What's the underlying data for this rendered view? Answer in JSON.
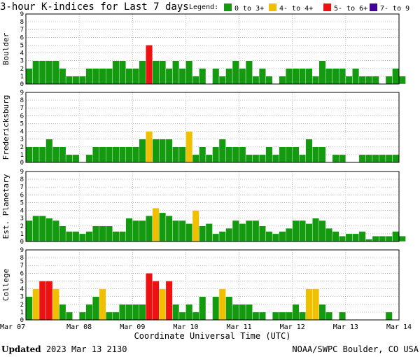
{
  "title": "3-hour K-indices for Last 7 days",
  "legend": {
    "label": "Legend:",
    "items": [
      {
        "label": "0 to 3+",
        "color": "#139a0e"
      },
      {
        "label": "4- to 4+",
        "color": "#f0c000"
      },
      {
        "label": "5- to 6+",
        "color": "#ee1111"
      },
      {
        "label": "7- to 9",
        "color": "#440099"
      }
    ]
  },
  "footer": {
    "updated_label": "Updated",
    "updated_value": "2023 Mar 13 2130",
    "source": "NOAA/SWPC Boulder, CO USA"
  },
  "chart_data": {
    "type": "bar",
    "xlabel": "Coordinate Universal Time (UTC)",
    "x_ticks": [
      "Mar 07",
      "Mar 08",
      "Mar 09",
      "Mar 10",
      "Mar 11",
      "Mar 12",
      "Mar 13",
      "Mar 14"
    ],
    "ylim": [
      0,
      9
    ],
    "y_ticks": [
      0,
      1,
      2,
      3,
      4,
      5,
      6,
      7,
      8,
      9
    ],
    "grid": true,
    "slots_per_day": 8,
    "days": 7,
    "panels": [
      {
        "name": "Boulder",
        "values": [
          2,
          3,
          3,
          3,
          3,
          2,
          1,
          1,
          1,
          2,
          2,
          2,
          2,
          3,
          3,
          2,
          2,
          3,
          5,
          3,
          3,
          2,
          3,
          2,
          3,
          1,
          2,
          0,
          2,
          1,
          2,
          3,
          2,
          3,
          1,
          2,
          1,
          0,
          1,
          2,
          2,
          2,
          2,
          1,
          3,
          2,
          2,
          2,
          1,
          2,
          1,
          1,
          1,
          0,
          1,
          2,
          1,
          0
        ]
      },
      {
        "name": "Fredericksburg",
        "values": [
          2,
          2,
          2,
          3,
          2,
          2,
          1,
          1,
          0,
          1,
          2,
          2,
          2,
          2,
          2,
          2,
          2,
          3,
          4,
          3,
          3,
          3,
          2,
          2,
          4,
          1,
          2,
          1,
          2,
          3,
          2,
          2,
          2,
          1,
          1,
          1,
          2,
          1,
          2,
          2,
          2,
          1,
          3,
          2,
          2,
          0,
          1,
          1,
          0,
          0,
          1,
          1,
          1,
          1,
          1,
          1,
          0
        ]
      },
      {
        "name": "Est. Planetary",
        "values": [
          2.7,
          3.3,
          3.3,
          3,
          2.7,
          2,
          1.3,
          1.3,
          1,
          1.3,
          2,
          2,
          2,
          1.3,
          1.3,
          3,
          2.7,
          2.7,
          3.3,
          4.3,
          3.7,
          3.3,
          2.7,
          2.7,
          2.3,
          4,
          2,
          2.3,
          1,
          1.3,
          1.7,
          2.7,
          2.3,
          2.7,
          2.7,
          2,
          1.3,
          1,
          1.3,
          1.7,
          2.7,
          2.7,
          2.3,
          3,
          2.7,
          1.7,
          1.3,
          0.7,
          1,
          1,
          1.3,
          0.3,
          0.7,
          0.7,
          0.7,
          1.3,
          0.7
        ]
      },
      {
        "name": "College",
        "values": [
          3,
          4,
          5,
          5,
          4,
          2,
          1,
          0,
          1,
          2,
          3,
          4,
          1,
          1,
          2,
          2,
          2,
          2,
          6,
          5,
          4,
          5,
          2,
          1,
          2,
          1,
          3,
          0,
          3,
          4,
          3,
          2,
          2,
          2,
          1,
          1,
          0,
          1,
          1,
          1,
          2,
          1,
          4,
          4,
          2,
          1,
          0,
          1,
          0,
          0,
          0,
          0,
          0,
          0,
          1,
          0,
          0
        ]
      }
    ]
  }
}
